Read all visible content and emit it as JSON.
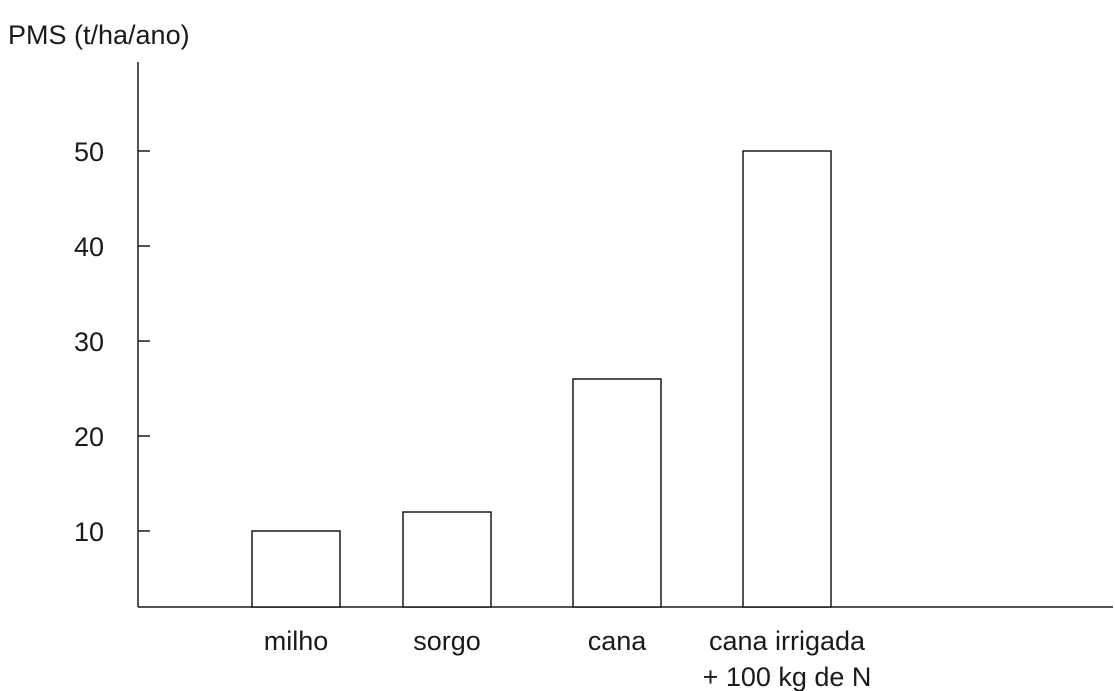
{
  "chart_data": {
    "type": "bar",
    "ylabel": "PMS (t/ha/ano)",
    "xlabel": "",
    "categories": [
      [
        "milho"
      ],
      [
        "sorgo"
      ],
      [
        "cana"
      ],
      [
        "cana irrigada",
        "+ 100 kg de N"
      ]
    ],
    "values": [
      10,
      12,
      26,
      50
    ],
    "yticks": [
      10,
      20,
      30,
      40,
      50
    ],
    "ylim": [
      2,
      60
    ],
    "grid": false,
    "legend": "none",
    "bar_fill": "#ffffff",
    "bar_stroke": "#1a1a1a"
  }
}
